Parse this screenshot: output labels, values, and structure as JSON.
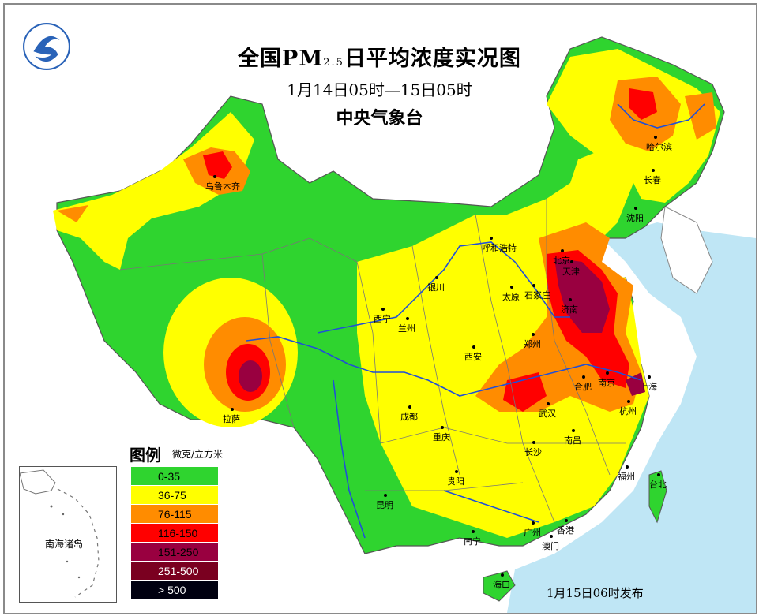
{
  "header": {
    "title_a": "全国PM",
    "title_sub": "2.5",
    "title_b": "日平均浓度实况图",
    "time_range": "1月14日05时—15日05时",
    "organization": "中央气象台"
  },
  "legend": {
    "title": "图例",
    "unit": "微克/立方米",
    "items": [
      {
        "label": "0-35",
        "color": "#2fd42f"
      },
      {
        "label": "36-75",
        "color": "#ffff00"
      },
      {
        "label": "76-115",
        "color": "#ff8c00"
      },
      {
        "label": "116-150",
        "color": "#ff0000"
      },
      {
        "label": "151-250",
        "color": "#990040"
      },
      {
        "label": "251-500",
        "color": "#7a0020"
      },
      {
        "label": "> 500",
        "color": "#000010"
      }
    ]
  },
  "inset": {
    "label": "南海诸岛"
  },
  "cities": [
    "乌鲁木齐",
    "哈尔滨",
    "长春",
    "沈阳",
    "呼和浩特",
    "北京",
    "天津",
    "石家庄",
    "太原",
    "银川",
    "西宁",
    "兰州",
    "济南",
    "郑州",
    "西安",
    "合肥",
    "南京",
    "上海",
    "杭州",
    "武汉",
    "成都",
    "重庆",
    "拉萨",
    "长沙",
    "南昌",
    "福州",
    "台北",
    "贵阳",
    "昆明",
    "南宁",
    "广州",
    "香港",
    "澳门",
    "海口"
  ],
  "issue_time": "1月15日06时发布",
  "colors": {
    "sea": "#bfe6f5",
    "land_outside": "#ffffff",
    "border": "#555555",
    "river": "#1f4fd8"
  }
}
